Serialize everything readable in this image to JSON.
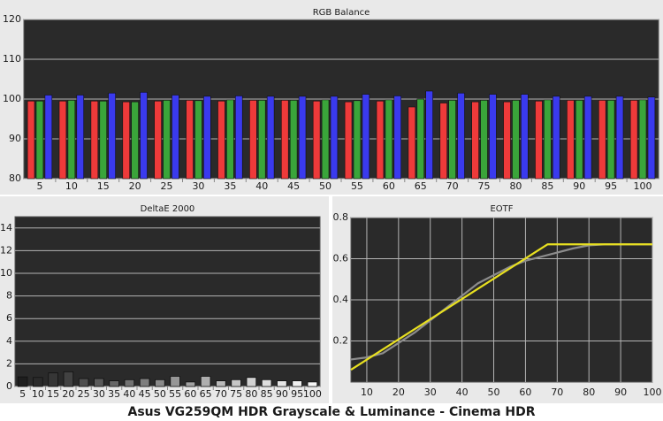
{
  "caption": "Asus VG259QM HDR Grayscale & Luminance - Cinema HDR",
  "chart_data": [
    {
      "type": "bar",
      "title": "RGB Balance",
      "categories": [
        "5",
        "10",
        "15",
        "20",
        "25",
        "30",
        "35",
        "40",
        "45",
        "50",
        "55",
        "60",
        "65",
        "70",
        "75",
        "80",
        "85",
        "90",
        "95",
        "100"
      ],
      "series": [
        {
          "color": "#ee3a3a",
          "values": [
            99.5,
            99.5,
            99.5,
            99.3,
            99.5,
            99.7,
            99.5,
            99.7,
            99.7,
            99.5,
            99.3,
            99.5,
            98.0,
            99.0,
            99.3,
            99.3,
            99.5,
            99.7,
            99.7,
            99.7
          ]
        },
        {
          "color": "#3aa53a",
          "values": [
            99.5,
            99.7,
            99.5,
            99.3,
            99.7,
            99.6,
            99.8,
            99.7,
            99.7,
            99.8,
            99.6,
            99.8,
            100.0,
            99.7,
            99.7,
            99.7,
            99.8,
            99.7,
            99.7,
            99.8
          ]
        },
        {
          "color": "#3a3aee",
          "values": [
            101.0,
            101.0,
            101.5,
            101.7,
            101.0,
            100.7,
            100.8,
            100.7,
            100.7,
            100.7,
            101.2,
            100.8,
            102.0,
            101.5,
            101.2,
            101.2,
            100.7,
            100.7,
            100.7,
            100.5
          ]
        }
      ],
      "ylim": [
        80,
        120
      ],
      "yticks": [
        80,
        90,
        100,
        110,
        120
      ],
      "grid": true
    },
    {
      "type": "bar",
      "title": "DeltaE 2000",
      "categories": [
        "5",
        "10",
        "15",
        "20",
        "25",
        "30",
        "35",
        "40",
        "45",
        "50",
        "55",
        "60",
        "65",
        "70",
        "75",
        "80",
        "85",
        "90",
        "95",
        "100"
      ],
      "values": [
        0.85,
        0.8,
        1.2,
        1.3,
        0.7,
        0.7,
        0.5,
        0.6,
        0.7,
        0.6,
        0.9,
        0.4,
        0.9,
        0.5,
        0.6,
        0.8,
        0.6,
        0.5,
        0.5,
        0.4
      ],
      "colors": [
        "#1e1e1e",
        "#2a2a2a",
        "#363636",
        "#424242",
        "#4e4e4e",
        "#5a5a5a",
        "#666666",
        "#727272",
        "#7e7e7e",
        "#8a8a8a",
        "#969696",
        "#a2a2a2",
        "#aeaeae",
        "#bababa",
        "#c6c6c6",
        "#d2d2d2",
        "#dedede",
        "#e6e6e6",
        "#eeeeee",
        "#f6f6f6"
      ],
      "ylim": [
        0,
        15
      ],
      "yticks": [
        0,
        2,
        4,
        6,
        8,
        10,
        12,
        14
      ],
      "grid": true
    },
    {
      "type": "line",
      "title": "EOTF",
      "series": [
        {
          "color": "#8c8c8c",
          "x": [
            5,
            10,
            15,
            20,
            25,
            30,
            35,
            40,
            45,
            50,
            55,
            60,
            65,
            70,
            75,
            80,
            85,
            90,
            95,
            100
          ],
          "values": [
            0.11,
            0.12,
            0.14,
            0.19,
            0.24,
            0.3,
            0.36,
            0.42,
            0.48,
            0.52,
            0.56,
            0.59,
            0.61,
            0.63,
            0.65,
            0.665,
            0.67,
            0.67,
            0.67,
            0.67
          ]
        },
        {
          "color": "#e8e020",
          "x": [
            5,
            67,
            100
          ],
          "values": [
            0.06,
            0.67,
            0.67
          ]
        }
      ],
      "xlim": [
        5,
        100
      ],
      "xticks": [
        10,
        20,
        30,
        40,
        50,
        60,
        70,
        80,
        90,
        100
      ],
      "ylim": [
        0,
        0.8
      ],
      "yticks": [
        0.2,
        0.4,
        0.6,
        0.8
      ],
      "grid": true
    }
  ]
}
